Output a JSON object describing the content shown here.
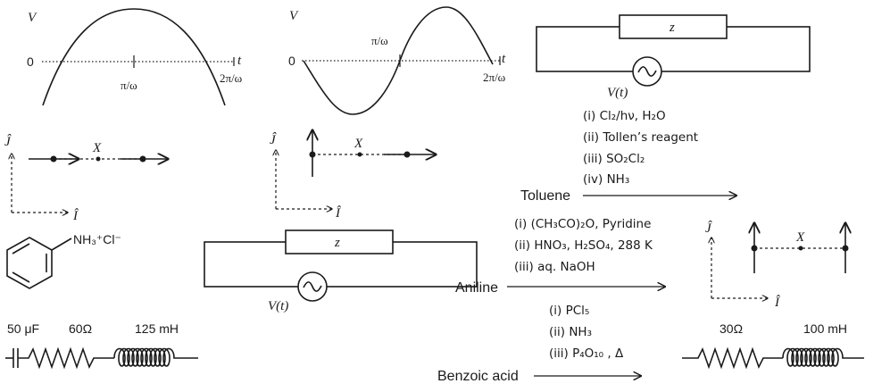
{
  "plot1": {
    "v": "V",
    "t": "t",
    "zero": "0",
    "tick1": "π/ω",
    "tick2": "2π/ω"
  },
  "plot2": {
    "v": "V",
    "t": "t",
    "zero": "0",
    "tick1": "π/ω",
    "tick2": "2π/ω"
  },
  "circuit_top": {
    "z": "z",
    "source": "V(t)"
  },
  "circuit_mid": {
    "z": "z",
    "source": "V(t)"
  },
  "vectors": {
    "j": "Ĵ",
    "i": "Î",
    "x": "X"
  },
  "anilinium": {
    "group": "NH₃⁺Cl⁻"
  },
  "rlc_series": {
    "c": "50 μF",
    "r": "60Ω",
    "l": "125 mH"
  },
  "rl_series": {
    "r": "30Ω",
    "l": "100 mH"
  },
  "reaction_toluene": {
    "steps": [
      "(i) Cl₂/hν, H₂O",
      "(ii) Tollen’s reagent",
      "(iii) SO₂Cl₂",
      "(iv) NH₃"
    ],
    "reactant": "Toluene"
  },
  "reaction_aniline": {
    "steps": [
      "(i) (CH₃CO)₂O, Pyridine",
      "(ii) HNO₃, H₂SO₄, 288 K",
      "(iii) aq. NaOH"
    ],
    "reactant": "Aniline"
  },
  "reaction_benzoic": {
    "steps": [
      "(i) PCl₅",
      "(ii) NH₃",
      "(iii) P₄O₁₀ , Δ"
    ],
    "reactant": "Benzoic acid"
  }
}
